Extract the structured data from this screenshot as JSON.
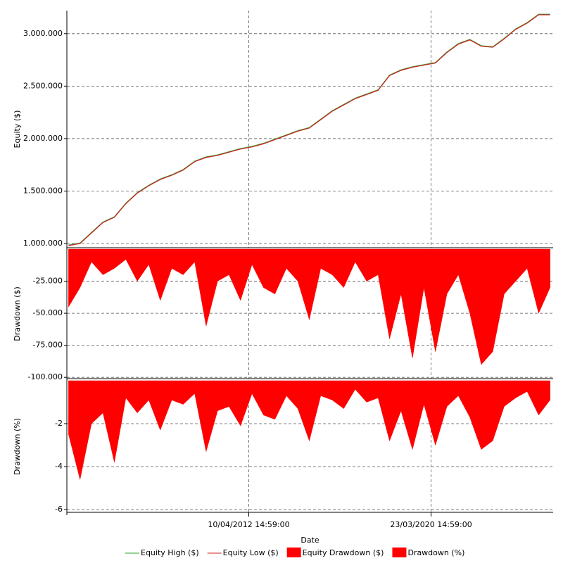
{
  "chart_data": [
    {
      "type": "line",
      "y_label": "Equity ($)",
      "x": [
        "2004-06-01",
        "2004-12-01",
        "2005-06-01",
        "2005-12-01",
        "2006-06-01",
        "2006-12-01",
        "2007-06-01",
        "2007-12-01",
        "2008-06-01",
        "2008-12-01",
        "2009-06-01",
        "2009-12-01",
        "2010-06-01",
        "2010-12-01",
        "2011-06-01",
        "2011-12-01",
        "2012-06-01",
        "2012-12-01",
        "2013-06-01",
        "2013-12-01",
        "2014-06-01",
        "2014-12-01",
        "2015-06-01",
        "2015-12-01",
        "2016-06-01",
        "2016-12-01",
        "2017-06-01",
        "2017-12-01",
        "2018-06-01",
        "2018-12-01",
        "2019-06-01",
        "2019-12-01",
        "2020-06-01",
        "2020-12-01",
        "2021-06-01",
        "2021-12-01",
        "2022-06-01",
        "2022-12-01",
        "2023-06-01",
        "2023-12-01",
        "2024-06-01",
        "2024-12-01",
        "2025-06-01"
      ],
      "xlim": [
        "2004-05-05",
        "2025-07-20"
      ],
      "series": [
        {
          "name": "Equity High ($)",
          "color": "#2ca02c",
          "values": [
            985000,
            1005000,
            1105000,
            1205000,
            1255000,
            1385000,
            1485000,
            1555000,
            1615000,
            1655000,
            1705000,
            1785000,
            1825000,
            1845000,
            1875000,
            1905000,
            1925000,
            1955000,
            1995000,
            2035000,
            2075000,
            2105000,
            2185000,
            2265000,
            2325000,
            2385000,
            2425000,
            2465000,
            2605000,
            2655000,
            2685000,
            2705000,
            2725000,
            2825000,
            2905000,
            2945000,
            2885000,
            2875000,
            2955000,
            3045000,
            3105000,
            3185000,
            3185000
          ]
        },
        {
          "name": "Equity Low ($)",
          "color": "#d42020",
          "values": [
            980000,
            1000000,
            1100000,
            1200000,
            1250000,
            1380000,
            1480000,
            1550000,
            1610000,
            1650000,
            1700000,
            1780000,
            1820000,
            1840000,
            1870000,
            1900000,
            1920000,
            1950000,
            1990000,
            2030000,
            2070000,
            2100000,
            2180000,
            2260000,
            2320000,
            2380000,
            2420000,
            2460000,
            2600000,
            2650000,
            2680000,
            2700000,
            2720000,
            2820000,
            2900000,
            2940000,
            2880000,
            2870000,
            2950000,
            3040000,
            3100000,
            3180000,
            3180000
          ]
        }
      ],
      "ylim": [
        960000,
        3220000
      ],
      "yticks": [
        {
          "value": 1000000,
          "label": "1.000.000"
        },
        {
          "value": 1500000,
          "label": "1.500.000"
        },
        {
          "value": 2000000,
          "label": "2.000.000"
        },
        {
          "value": 2500000,
          "label": "2.500.000"
        },
        {
          "value": 3000000,
          "label": "3.000.000"
        }
      ],
      "grid": true
    },
    {
      "type": "area",
      "y_label": "Drawdown ($)",
      "x": [
        "2004-06-01",
        "2004-12-01",
        "2005-06-01",
        "2005-12-01",
        "2006-06-01",
        "2006-12-01",
        "2007-06-01",
        "2007-12-01",
        "2008-06-01",
        "2008-12-01",
        "2009-06-01",
        "2009-12-01",
        "2010-06-01",
        "2010-12-01",
        "2011-06-01",
        "2011-12-01",
        "2012-06-01",
        "2012-12-01",
        "2013-06-01",
        "2013-12-01",
        "2014-06-01",
        "2014-12-01",
        "2015-06-01",
        "2015-12-01",
        "2016-06-01",
        "2016-12-01",
        "2017-06-01",
        "2017-12-01",
        "2018-06-01",
        "2018-12-01",
        "2019-06-01",
        "2019-12-01",
        "2020-06-01",
        "2020-12-01",
        "2021-06-01",
        "2021-12-01",
        "2022-06-01",
        "2022-12-01",
        "2023-06-01",
        "2023-12-01",
        "2024-06-01",
        "2024-12-01",
        "2025-06-01"
      ],
      "xlim": [
        "2004-05-05",
        "2025-07-20"
      ],
      "series": [
        {
          "name": "Equity Drawdown ($)",
          "color": "#ff0000",
          "values": [
            -45000,
            -30000,
            -10000,
            -20000,
            -15000,
            -8000,
            -25000,
            -12000,
            -40000,
            -15000,
            -20000,
            -10000,
            -60000,
            -25000,
            -20000,
            -40000,
            -12000,
            -30000,
            -35000,
            -15000,
            -25000,
            -55000,
            -15000,
            -20000,
            -30000,
            -10000,
            -25000,
            -20000,
            -70000,
            -35000,
            -85000,
            -30000,
            -80000,
            -35000,
            -20000,
            -50000,
            -90000,
            -80000,
            -35000,
            -25000,
            -15000,
            -50000,
            -30000
          ]
        }
      ],
      "ylim": [
        -101000,
        0
      ],
      "yticks": [
        {
          "value": -25000,
          "label": "-25.000"
        },
        {
          "value": -50000,
          "label": "-50.000"
        },
        {
          "value": -75000,
          "label": "-75.000"
        },
        {
          "value": -100000,
          "label": "-100.000"
        }
      ],
      "grid": true
    },
    {
      "type": "area",
      "y_label": "Drawdown (%)",
      "x_label": "Date",
      "x": [
        "2004-06-01",
        "2004-12-01",
        "2005-06-01",
        "2005-12-01",
        "2006-06-01",
        "2006-12-01",
        "2007-06-01",
        "2007-12-01",
        "2008-06-01",
        "2008-12-01",
        "2009-06-01",
        "2009-12-01",
        "2010-06-01",
        "2010-12-01",
        "2011-06-01",
        "2011-12-01",
        "2012-06-01",
        "2012-12-01",
        "2013-06-01",
        "2013-12-01",
        "2014-06-01",
        "2014-12-01",
        "2015-06-01",
        "2015-12-01",
        "2016-06-01",
        "2016-12-01",
        "2017-06-01",
        "2017-12-01",
        "2018-06-01",
        "2018-12-01",
        "2019-06-01",
        "2019-12-01",
        "2020-06-01",
        "2020-12-01",
        "2021-06-01",
        "2021-12-01",
        "2022-06-01",
        "2022-12-01",
        "2023-06-01",
        "2023-12-01",
        "2024-06-01",
        "2024-12-01",
        "2025-06-01"
      ],
      "xlim": [
        "2004-05-05",
        "2025-07-20"
      ],
      "xticks": [
        {
          "value": "2012-04-10T14:59:00",
          "label": "10/04/2012 14:59:00"
        },
        {
          "value": "2020-03-23T14:59:00",
          "label": "23/03/2020 14:59:00"
        }
      ],
      "series": [
        {
          "name": "Drawdown (%)",
          "color": "#ff0000",
          "values": [
            -2.5,
            -4.6,
            -2,
            -1.5,
            -3.8,
            -0.8,
            -1.5,
            -0.9,
            -2.3,
            -0.9,
            -1.1,
            -0.6,
            -3.3,
            -1.4,
            -1.2,
            -2.1,
            -0.6,
            -1.6,
            -1.8,
            -0.7,
            -1.3,
            -2.8,
            -0.7,
            -0.9,
            -1.3,
            -0.4,
            -1,
            -0.8,
            -2.8,
            -1.4,
            -3.2,
            -1.1,
            -3,
            -1.2,
            -0.7,
            -1.7,
            -3.2,
            -2.8,
            -1.2,
            -0.8,
            -0.5,
            -1.6,
            -0.9
          ]
        }
      ],
      "ylim": [
        -6.13,
        0
      ],
      "yticks": [
        -2,
        -4,
        -6
      ],
      "grid": true
    }
  ]
}
